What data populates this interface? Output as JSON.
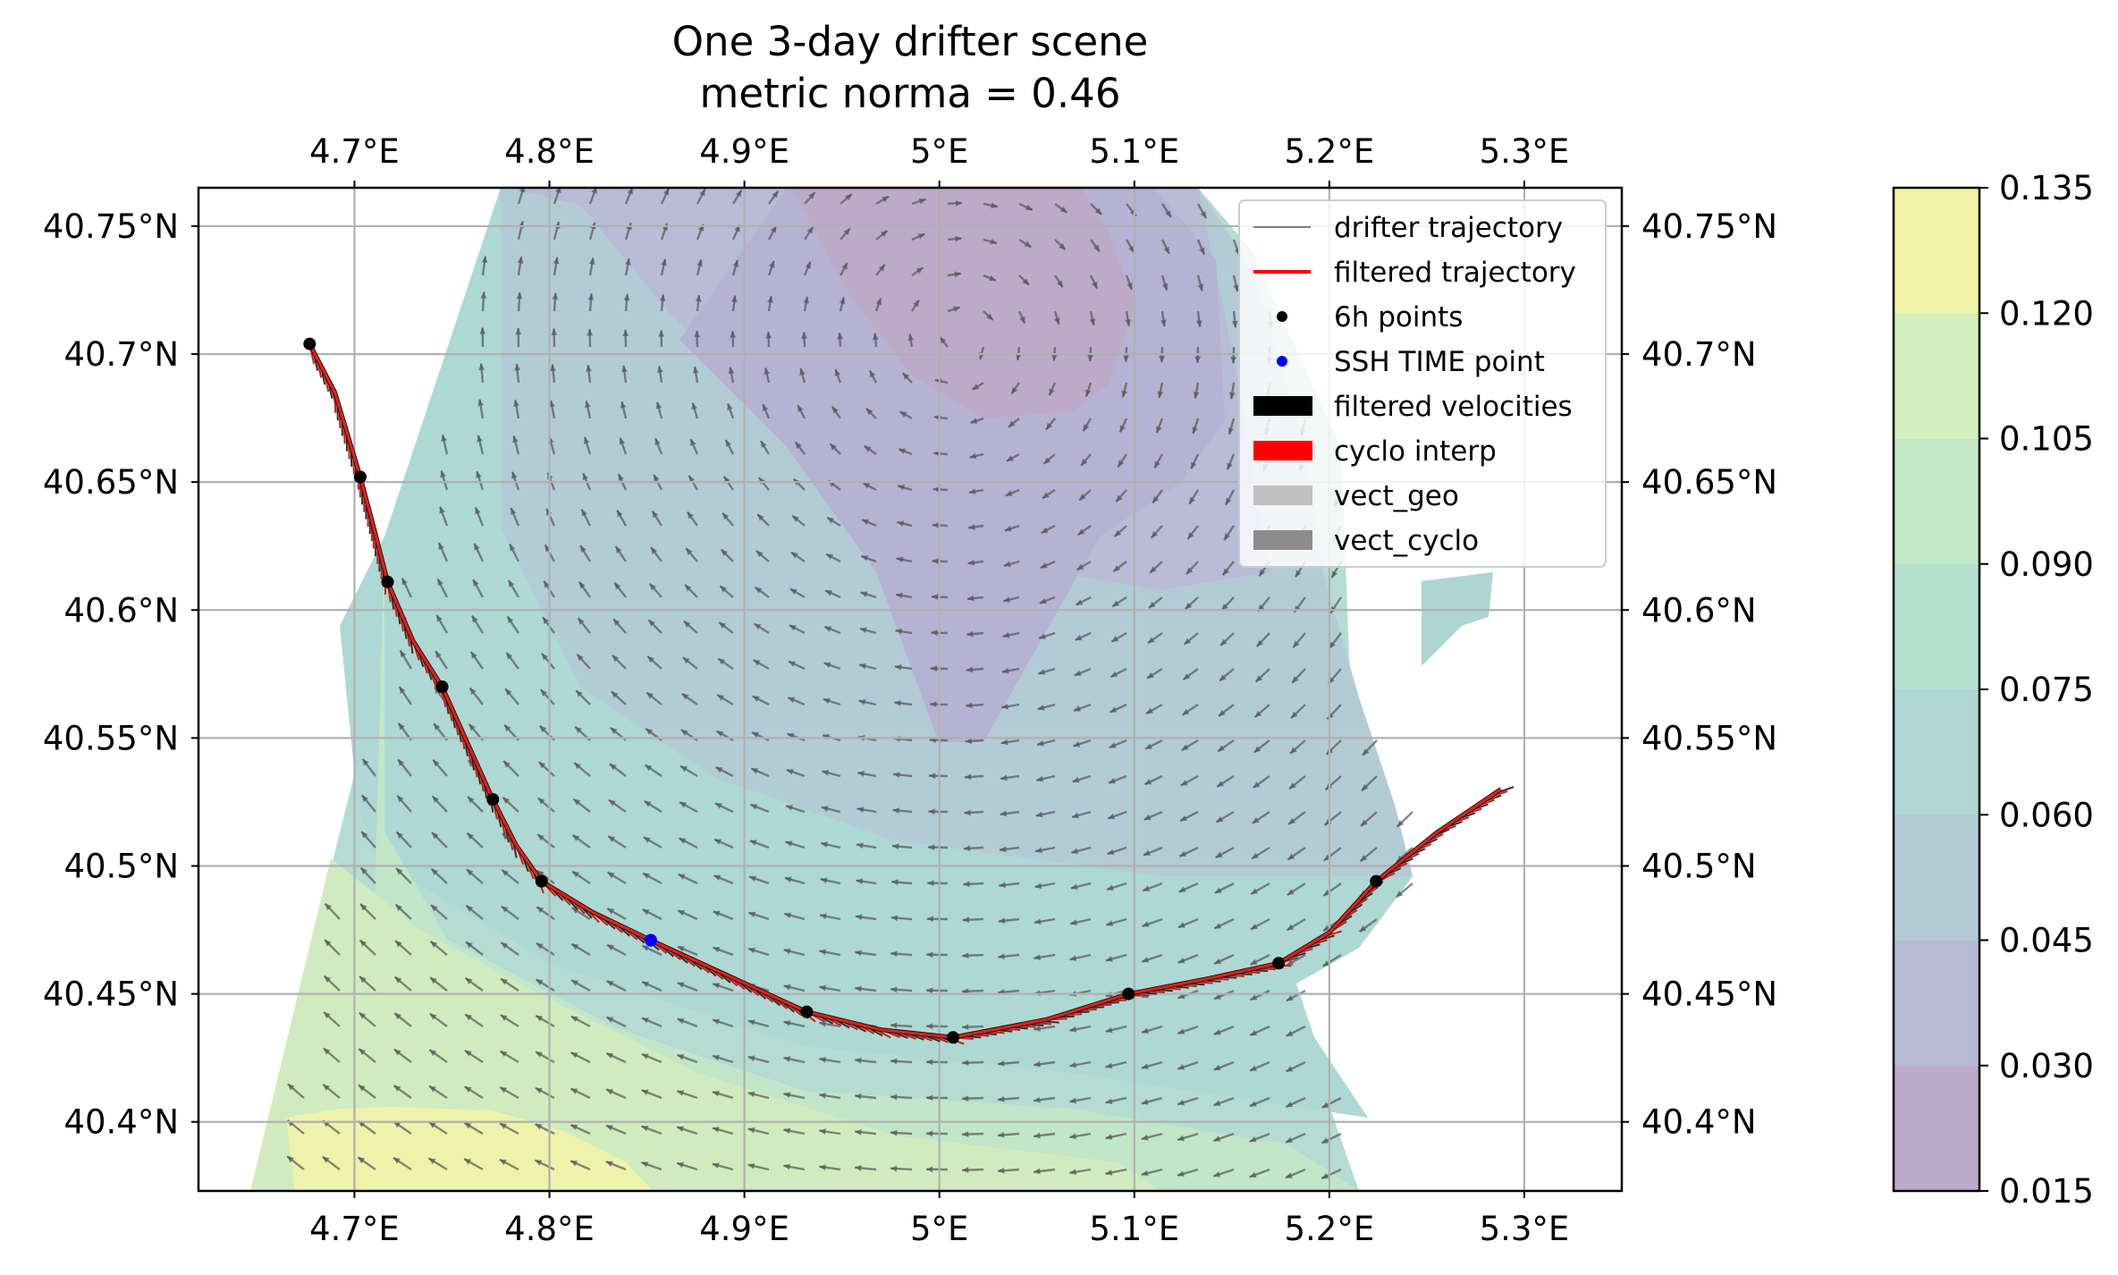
{
  "chart_data": {
    "type": "map",
    "title_line1": "One 3-day drifter scene",
    "title_line2": "metric norma = 0.46",
    "xlim": [
      4.62,
      5.35
    ],
    "ylim": [
      40.373,
      40.765
    ],
    "x_ticks": [
      {
        "value": 4.7,
        "label": "4.7°E"
      },
      {
        "value": 4.8,
        "label": "4.8°E"
      },
      {
        "value": 4.9,
        "label": "4.9°E"
      },
      {
        "value": 5.0,
        "label": "5°E"
      },
      {
        "value": 5.1,
        "label": "5.1°E"
      },
      {
        "value": 5.2,
        "label": "5.2°E"
      },
      {
        "value": 5.3,
        "label": "5.3°E"
      }
    ],
    "y_ticks": [
      {
        "value": 40.4,
        "label": "40.4°N"
      },
      {
        "value": 40.45,
        "label": "40.45°N"
      },
      {
        "value": 40.5,
        "label": "40.5°N"
      },
      {
        "value": 40.55,
        "label": "40.55°N"
      },
      {
        "value": 40.6,
        "label": "40.6°N"
      },
      {
        "value": 40.65,
        "label": "40.65°N"
      },
      {
        "value": 40.7,
        "label": "40.7°N"
      },
      {
        "value": 40.75,
        "label": "40.75°N"
      }
    ],
    "grid": true,
    "legend_position": "top-right",
    "legend": [
      {
        "label": "drifter trajectory",
        "kind": "line",
        "color": "#555555"
      },
      {
        "label": "filtered trajectory",
        "kind": "line",
        "color": "#ff0000"
      },
      {
        "label": "6h points",
        "kind": "dot",
        "color": "#000000"
      },
      {
        "label": "SSH TIME point",
        "kind": "dot",
        "color": "#0000ff"
      },
      {
        "label": "filtered velocities",
        "kind": "patch",
        "color": "#000000"
      },
      {
        "label": "cyclo interp",
        "kind": "patch",
        "color": "#ff0000"
      },
      {
        "label": "vect_geo",
        "kind": "patch",
        "color": "#c0c0c0"
      },
      {
        "label": "vect_cyclo",
        "kind": "patch",
        "color": "#8c8c8c"
      }
    ],
    "colorbar": {
      "ticks": [
        "0.015",
        "0.030",
        "0.045",
        "0.060",
        "0.075",
        "0.090",
        "0.105",
        "0.120",
        "0.135"
      ],
      "colors": [
        "#bcaac9",
        "#b8bad6",
        "#b3cad4",
        "#aed6d4",
        "#b3e0cf",
        "#c2e8c6",
        "#d3efbd",
        "#f1f4a9"
      ]
    },
    "trajectory": [
      [
        4.677,
        40.704
      ],
      [
        4.69,
        40.685
      ],
      [
        4.703,
        40.652
      ],
      [
        4.71,
        40.632
      ],
      [
        4.717,
        40.611
      ],
      [
        4.73,
        40.588
      ],
      [
        4.745,
        40.57
      ],
      [
        4.758,
        40.548
      ],
      [
        4.771,
        40.526
      ],
      [
        4.783,
        40.508
      ],
      [
        4.796,
        40.494
      ],
      [
        4.822,
        40.482
      ],
      [
        4.852,
        40.471
      ],
      [
        4.892,
        40.457
      ],
      [
        4.932,
        40.443
      ],
      [
        4.97,
        40.436
      ],
      [
        5.007,
        40.433
      ],
      [
        5.055,
        40.44
      ],
      [
        5.097,
        40.45
      ],
      [
        5.138,
        40.456
      ],
      [
        5.174,
        40.462
      ],
      [
        5.2,
        40.474
      ],
      [
        5.224,
        40.494
      ],
      [
        5.255,
        40.513
      ],
      [
        5.288,
        40.53
      ]
    ],
    "points_6h": [
      [
        4.677,
        40.704
      ],
      [
        4.703,
        40.652
      ],
      [
        4.717,
        40.611
      ],
      [
        4.745,
        40.57
      ],
      [
        4.771,
        40.526
      ],
      [
        4.796,
        40.494
      ],
      [
        4.932,
        40.443
      ],
      [
        5.007,
        40.433
      ],
      [
        5.097,
        40.45
      ],
      [
        5.174,
        40.462
      ],
      [
        5.224,
        40.494
      ]
    ],
    "ssh_time_point": [
      4.852,
      40.471
    ]
  }
}
